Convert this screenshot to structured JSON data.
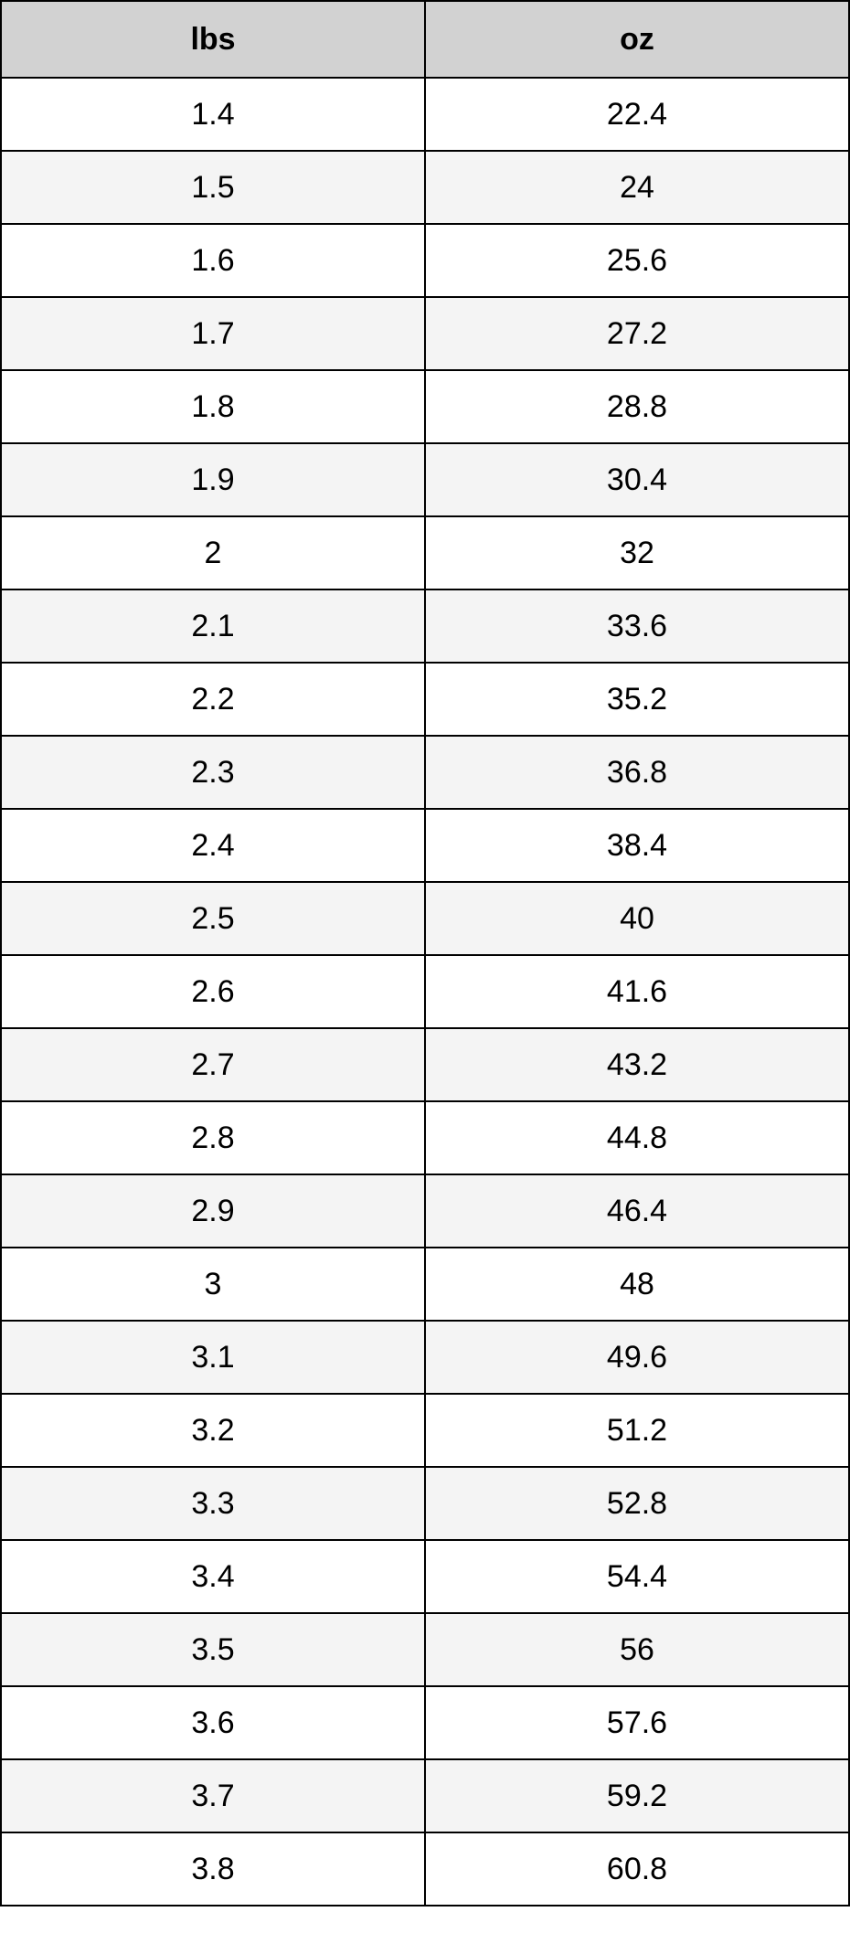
{
  "table": {
    "type": "table",
    "columns": [
      "lbs",
      "oz"
    ],
    "rows": [
      [
        "1.4",
        "22.4"
      ],
      [
        "1.5",
        "24"
      ],
      [
        "1.6",
        "25.6"
      ],
      [
        "1.7",
        "27.2"
      ],
      [
        "1.8",
        "28.8"
      ],
      [
        "1.9",
        "30.4"
      ],
      [
        "2",
        "32"
      ],
      [
        "2.1",
        "33.6"
      ],
      [
        "2.2",
        "35.2"
      ],
      [
        "2.3",
        "36.8"
      ],
      [
        "2.4",
        "38.4"
      ],
      [
        "2.5",
        "40"
      ],
      [
        "2.6",
        "41.6"
      ],
      [
        "2.7",
        "43.2"
      ],
      [
        "2.8",
        "44.8"
      ],
      [
        "2.9",
        "46.4"
      ],
      [
        "3",
        "48"
      ],
      [
        "3.1",
        "49.6"
      ],
      [
        "3.2",
        "51.2"
      ],
      [
        "3.3",
        "52.8"
      ],
      [
        "3.4",
        "54.4"
      ],
      [
        "3.5",
        "56"
      ],
      [
        "3.6",
        "57.6"
      ],
      [
        "3.7",
        "59.2"
      ],
      [
        "3.8",
        "60.8"
      ]
    ],
    "header_bg": "#d2d2d2",
    "row_even_bg": "#f4f4f4",
    "row_odd_bg": "#ffffff",
    "border_color": "#000000",
    "font_size_pt": 26,
    "header_font_weight": 700,
    "column_count": 2,
    "column_widths": [
      "50%",
      "50%"
    ],
    "text_align": "center"
  }
}
